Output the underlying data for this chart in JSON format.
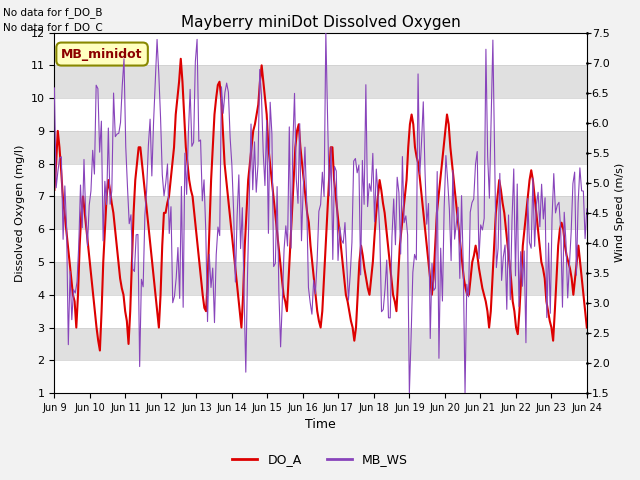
{
  "title": "Mayberry miniDot Dissolved Oxygen",
  "xlabel": "Time",
  "ylabel_left": "Dissolved Oxygen (mg/l)",
  "ylabel_right": "Wind Speed (m/s)",
  "ylim_left": [
    1.0,
    12.0
  ],
  "ylim_right": [
    1.5,
    7.5
  ],
  "yticks_left": [
    1.0,
    2.0,
    3.0,
    4.0,
    5.0,
    6.0,
    7.0,
    8.0,
    9.0,
    10.0,
    11.0,
    12.0
  ],
  "yticks_right": [
    1.5,
    2.0,
    2.5,
    3.0,
    3.5,
    4.0,
    4.5,
    5.0,
    5.5,
    6.0,
    6.5,
    7.0,
    7.5
  ],
  "xtick_labels": [
    "Jun 9",
    "Jun 10",
    "Jun 11",
    "Jun 12",
    "Jun 13",
    "Jun 14",
    "Jun 15",
    "Jun 16",
    "Jun 17",
    "Jun 18",
    "Jun 19",
    "Jun 20",
    "Jun 21",
    "Jun 22",
    "Jun 23",
    "Jun 24"
  ],
  "no_data_text_1": "No data for f_DO_B",
  "no_data_text_2": "No data for f_DO_C",
  "box_label": "MB_minidot",
  "color_DO_A": "#dd0000",
  "color_MB_WS": "#8844bb",
  "legend_label_DO_A": "DO_A",
  "legend_label_MB_WS": "MB_WS",
  "DO_A": [
    7.2,
    8.0,
    9.0,
    8.5,
    7.8,
    7.0,
    6.5,
    6.0,
    5.5,
    5.0,
    4.5,
    4.0,
    3.8,
    3.0,
    4.0,
    5.5,
    6.5,
    7.0,
    6.5,
    6.0,
    5.5,
    5.0,
    4.5,
    4.0,
    3.5,
    3.0,
    2.6,
    2.3,
    3.5,
    5.0,
    6.0,
    7.0,
    7.5,
    7.2,
    6.8,
    6.5,
    6.0,
    5.5,
    5.0,
    4.5,
    4.2,
    4.0,
    3.5,
    3.2,
    2.5,
    3.5,
    5.0,
    6.5,
    7.5,
    8.0,
    8.5,
    8.5,
    8.0,
    7.5,
    7.0,
    6.5,
    6.0,
    5.5,
    5.0,
    4.5,
    4.0,
    3.5,
    3.0,
    4.0,
    5.5,
    6.5,
    6.5,
    6.8,
    7.0,
    7.5,
    8.0,
    8.5,
    9.5,
    10.0,
    10.5,
    11.2,
    10.5,
    9.5,
    8.5,
    8.0,
    7.5,
    7.2,
    7.0,
    6.5,
    6.0,
    5.5,
    5.0,
    4.5,
    4.0,
    3.6,
    3.5,
    4.5,
    6.0,
    7.5,
    8.5,
    9.5,
    10.0,
    10.4,
    10.5,
    10.0,
    9.0,
    8.0,
    7.5,
    7.0,
    6.5,
    6.0,
    5.5,
    5.0,
    4.5,
    4.0,
    3.5,
    3.0,
    4.0,
    5.5,
    6.5,
    7.5,
    8.0,
    8.5,
    9.0,
    9.2,
    9.5,
    9.8,
    10.5,
    11.0,
    10.5,
    10.0,
    9.5,
    8.5,
    8.0,
    7.5,
    7.0,
    6.5,
    6.0,
    5.5,
    5.0,
    4.5,
    4.0,
    3.8,
    3.5,
    4.5,
    5.5,
    6.5,
    7.5,
    8.5,
    9.0,
    9.2,
    8.5,
    8.0,
    7.5,
    7.0,
    6.5,
    6.2,
    5.5,
    5.0,
    4.5,
    4.0,
    3.5,
    3.2,
    3.0,
    3.5,
    4.5,
    5.5,
    6.5,
    7.5,
    8.5,
    8.5,
    7.5,
    7.0,
    6.5,
    6.0,
    5.5,
    5.0,
    4.5,
    4.0,
    3.8,
    3.5,
    3.2,
    3.0,
    2.6,
    3.0,
    4.0,
    5.0,
    5.5,
    5.2,
    4.8,
    4.5,
    4.2,
    4.0,
    4.5,
    5.0,
    5.8,
    6.5,
    7.0,
    7.5,
    7.2,
    6.8,
    6.5,
    6.0,
    5.5,
    5.0,
    4.5,
    4.0,
    3.8,
    3.5,
    4.5,
    5.5,
    6.0,
    6.5,
    7.0,
    7.5,
    8.5,
    9.2,
    9.5,
    9.2,
    8.5,
    8.2,
    8.0,
    7.5,
    7.0,
    6.5,
    6.0,
    5.5,
    5.0,
    4.5,
    4.0,
    4.5,
    5.5,
    6.5,
    7.0,
    7.5,
    8.0,
    8.5,
    9.0,
    9.5,
    9.2,
    8.5,
    8.0,
    7.5,
    7.0,
    6.5,
    6.0,
    5.5,
    5.0,
    4.5,
    4.2,
    4.0,
    4.0,
    4.5,
    5.0,
    5.2,
    5.5,
    5.2,
    4.8,
    4.5,
    4.2,
    4.0,
    3.8,
    3.5,
    3.0,
    3.5,
    4.5,
    5.5,
    6.5,
    7.0,
    7.5,
    7.2,
    6.8,
    6.5,
    6.0,
    5.5,
    5.0,
    4.5,
    3.8,
    3.5,
    3.0,
    2.8,
    3.5,
    4.5,
    5.5,
    6.0,
    6.5,
    7.0,
    7.5,
    7.8,
    7.5,
    7.0,
    6.5,
    6.0,
    5.5,
    5.0,
    4.8,
    4.5,
    3.8,
    3.5,
    3.2,
    3.0,
    2.6,
    3.5,
    4.5,
    5.5,
    6.0,
    6.2,
    6.0,
    5.5,
    5.2,
    5.0,
    4.8,
    4.5,
    4.0,
    4.5,
    5.0,
    5.5,
    5.0,
    4.5,
    4.0,
    3.5,
    3.0
  ],
  "MB_WS_base": [
    5.2,
    5.0,
    4.8,
    4.5,
    4.5,
    4.2,
    4.0,
    3.8,
    3.5,
    3.2,
    3.0,
    3.5,
    4.0,
    4.5,
    5.0,
    5.3,
    5.5,
    5.2,
    5.0,
    4.8,
    4.5,
    5.0,
    5.5,
    6.0,
    6.3,
    6.5,
    6.2,
    5.8,
    5.5,
    5.2,
    5.0,
    4.8,
    5.0,
    5.5,
    6.0,
    6.5,
    6.8,
    7.0,
    6.8,
    6.5,
    6.0,
    5.5,
    5.0,
    4.5,
    4.2,
    4.0,
    3.8,
    3.5,
    3.2,
    3.0,
    3.2,
    3.5,
    4.0,
    4.5,
    5.0,
    5.5,
    6.0,
    6.2,
    6.5,
    6.8,
    6.5,
    6.2,
    5.8,
    5.5,
    5.0,
    4.5,
    4.2,
    4.0,
    3.8,
    3.5,
    3.2,
    3.0,
    3.5,
    4.0,
    4.5,
    5.0,
    5.5,
    6.0,
    6.5,
    6.8,
    7.0,
    6.8,
    6.5,
    6.0,
    5.5,
    5.0,
    4.5,
    4.0,
    3.8,
    3.5,
    3.2,
    3.0,
    3.5,
    4.0,
    4.5,
    5.0,
    5.5,
    6.0,
    6.5,
    6.8,
    6.5,
    6.0,
    5.5,
    5.0,
    4.5,
    4.2,
    4.0,
    3.8,
    3.5,
    3.2,
    3.0,
    3.5,
    4.0,
    4.5,
    5.0,
    5.5,
    5.8,
    6.0,
    6.2,
    6.0,
    5.8,
    5.5,
    5.2,
    5.0,
    4.8,
    4.5,
    4.2,
    4.0,
    3.8,
    3.5,
    3.2,
    3.0,
    3.5,
    4.0,
    4.5,
    5.0,
    5.5,
    5.8,
    6.0,
    5.8,
    5.5,
    5.2,
    5.0,
    4.8,
    4.5,
    4.2,
    4.0,
    3.8,
    3.5,
    3.2,
    3.0,
    3.5,
    4.0,
    4.5,
    5.0,
    5.2,
    5.5,
    5.8,
    5.5,
    5.2,
    5.0,
    4.8,
    4.5,
    4.2,
    4.0,
    3.8,
    3.5,
    3.2,
    3.0,
    3.5,
    4.0,
    4.5,
    5.0,
    5.2,
    5.0,
    4.8,
    4.5,
    4.5,
    4.8,
    5.0,
    5.2,
    5.5,
    5.5,
    5.2,
    5.0,
    4.8,
    4.5,
    4.2,
    4.0,
    3.8,
    3.5,
    3.2,
    3.0,
    3.5,
    4.0,
    4.5,
    5.0,
    5.0,
    4.8,
    4.5,
    4.2,
    4.0,
    3.8,
    3.5,
    3.2,
    3.0,
    3.2,
    3.5,
    4.0,
    4.5,
    4.8,
    5.0,
    5.0,
    4.8,
    4.5,
    4.2,
    4.0,
    3.8,
    3.5,
    3.2,
    3.0,
    3.2,
    3.5,
    4.0,
    4.5,
    4.8,
    5.0,
    5.2,
    5.0,
    4.8,
    4.5,
    4.2,
    4.0,
    3.8,
    3.5,
    3.2,
    3.0,
    3.2,
    3.5,
    4.0,
    4.5,
    4.8,
    5.0,
    5.0,
    4.8,
    4.5,
    4.5,
    4.8,
    5.0,
    5.2,
    5.5,
    5.5,
    5.0,
    4.8,
    4.5,
    4.2,
    4.0,
    3.8,
    3.5,
    3.5,
    4.0,
    4.5,
    5.0,
    5.0,
    4.5,
    4.2,
    4.0,
    3.8,
    3.5,
    3.2,
    3.0,
    3.2,
    3.5,
    4.0,
    4.5,
    4.8,
    5.0,
    5.0,
    4.8,
    4.5,
    4.2,
    4.0,
    3.8,
    3.5,
    3.5,
    4.0,
    4.5,
    4.8,
    5.0,
    5.0,
    4.8,
    4.5,
    4.2,
    4.0,
    3.8,
    3.5,
    3.5,
    4.0,
    4.5,
    4.8,
    5.0,
    5.0,
    4.8,
    4.5,
    4.2,
    4.0,
    3.8
  ]
}
